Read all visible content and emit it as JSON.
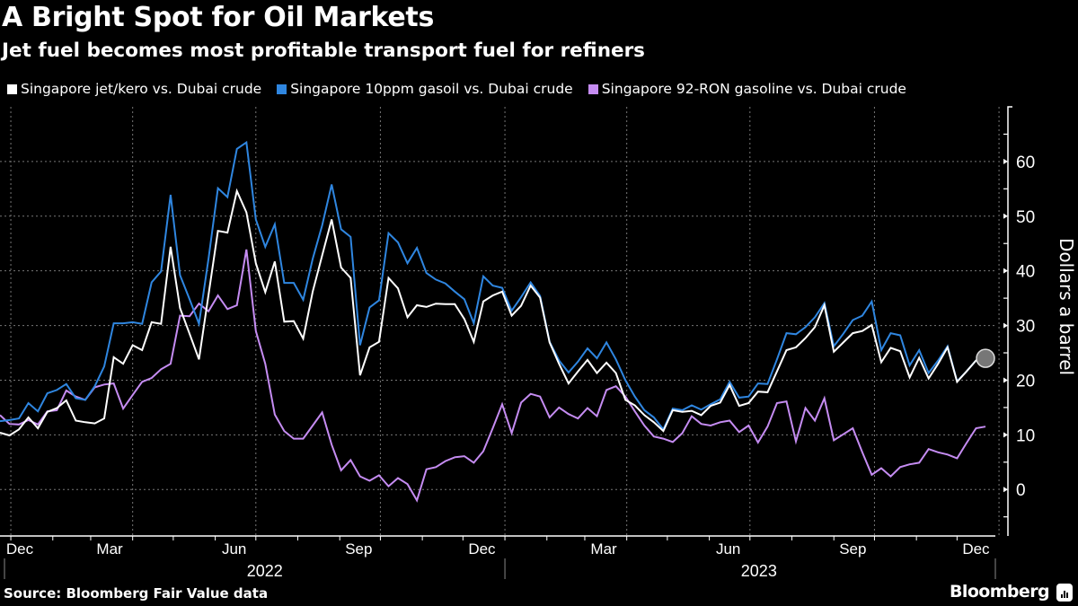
{
  "header": {
    "title": "A Bright Spot for Oil Markets",
    "subtitle": "Jet fuel becomes most profitable transport fuel for refiners"
  },
  "footer": {
    "source": "Source: Bloomberg Fair Value data",
    "brand": "Bloomberg"
  },
  "colors": {
    "background": "#000000",
    "jet": "#ffffff",
    "gasoil": "#2f86e0",
    "gasoline": "#c58cf2",
    "grid": "#777777",
    "end_marker": "#777777"
  },
  "chart_data": {
    "type": "line",
    "title": "A Bright Spot for Oil Markets",
    "subtitle": "Jet fuel becomes most profitable transport fuel for refiners",
    "ylabel": "Dollars a barrel",
    "xlabel": "",
    "ylim": [
      -8.5,
      70
    ],
    "yticks": [
      0,
      10,
      20,
      30,
      40,
      50,
      60
    ],
    "y_axis_position": "right",
    "grid": true,
    "legend_position": "top",
    "x_month_labels": [
      {
        "label": "Dec",
        "date": "2021-12-15"
      },
      {
        "label": "Mar",
        "date": "2022-03-15"
      },
      {
        "label": "Jun",
        "date": "2022-06-15"
      },
      {
        "label": "Sep",
        "date": "2022-09-15"
      },
      {
        "label": "Dec",
        "date": "2022-12-15"
      },
      {
        "label": "Mar",
        "date": "2023-03-15"
      },
      {
        "label": "Jun",
        "date": "2023-06-15"
      },
      {
        "label": "Sep",
        "date": "2023-09-15"
      },
      {
        "label": "Dec",
        "date": "2023-12-15"
      }
    ],
    "x_year_labels": [
      {
        "label": "2022",
        "date": "2022-07-01"
      },
      {
        "label": "2023",
        "date": "2023-07-01"
      }
    ],
    "x": [
      "2021-12-24",
      "2021-12-31",
      "2022-01-07",
      "2022-01-14",
      "2022-01-21",
      "2022-01-28",
      "2022-02-04",
      "2022-02-11",
      "2022-02-18",
      "2022-02-25",
      "2022-03-04",
      "2022-03-11",
      "2022-03-18",
      "2022-03-25",
      "2022-04-01",
      "2022-04-08",
      "2022-04-15",
      "2022-04-22",
      "2022-04-29",
      "2022-05-06",
      "2022-05-13",
      "2022-05-20",
      "2022-05-27",
      "2022-06-03",
      "2022-06-10",
      "2022-06-17",
      "2022-06-24",
      "2022-07-01",
      "2022-07-08",
      "2022-07-15",
      "2022-07-22",
      "2022-07-29",
      "2022-08-05",
      "2022-08-12",
      "2022-08-19",
      "2022-08-26",
      "2022-09-02",
      "2022-09-09",
      "2022-09-16",
      "2022-09-23",
      "2022-09-30",
      "2022-10-07",
      "2022-10-14",
      "2022-10-21",
      "2022-10-28",
      "2022-11-04",
      "2022-11-11",
      "2022-11-18",
      "2022-11-25",
      "2022-12-02",
      "2022-12-09",
      "2022-12-16",
      "2022-12-23",
      "2022-12-30",
      "2023-01-06",
      "2023-01-13",
      "2023-01-20",
      "2023-01-27",
      "2023-02-03",
      "2023-02-10",
      "2023-02-17",
      "2023-02-24",
      "2023-03-03",
      "2023-03-10",
      "2023-03-17",
      "2023-03-24",
      "2023-03-31",
      "2023-04-07",
      "2023-04-14",
      "2023-04-21",
      "2023-04-28",
      "2023-05-05",
      "2023-05-12",
      "2023-05-19",
      "2023-05-26",
      "2023-06-02",
      "2023-06-09",
      "2023-06-16",
      "2023-06-23",
      "2023-06-30",
      "2023-07-07",
      "2023-07-14",
      "2023-07-21",
      "2023-07-28",
      "2023-08-04",
      "2023-08-11",
      "2023-08-18",
      "2023-08-25",
      "2023-09-01",
      "2023-09-08",
      "2023-09-15",
      "2023-09-22",
      "2023-09-29",
      "2023-10-06",
      "2023-10-13",
      "2023-10-20",
      "2023-10-27",
      "2023-11-03",
      "2023-11-10",
      "2023-11-17",
      "2023-11-24",
      "2023-12-01",
      "2023-12-08",
      "2023-12-15",
      "2023-12-22"
    ],
    "series": [
      {
        "name": "Singapore jet/kero vs. Dubai crude",
        "color": "#ffffff",
        "end_marker": true,
        "values": [
          10.4,
          9.9,
          11.0,
          13.2,
          11.2,
          14.2,
          14.9,
          16.3,
          12.6,
          12.3,
          12.1,
          13.0,
          24.2,
          23.0,
          26.4,
          25.5,
          30.6,
          30.3,
          44.4,
          33.2,
          28.5,
          23.8,
          35.6,
          47.3,
          47.0,
          54.6,
          50.7,
          41.4,
          36.1,
          41.7,
          30.7,
          30.8,
          27.6,
          36.2,
          42.8,
          49.4,
          40.6,
          38.7,
          20.9,
          26.0,
          27.0,
          38.7,
          36.8,
          31.5,
          33.7,
          33.4,
          34.0,
          33.9,
          33.9,
          31.2,
          27.0,
          34.4,
          35.5,
          36.2,
          31.8,
          33.6,
          37.3,
          35.1,
          26.9,
          23.0,
          19.4,
          21.6,
          23.7,
          21.3,
          23.2,
          21.3,
          16.4,
          15.4,
          13.6,
          12.3,
          10.7,
          14.5,
          14.2,
          14.4,
          13.6,
          15.3,
          15.9,
          19.1,
          15.3,
          15.8,
          17.9,
          17.8,
          21.6,
          25.5,
          26.0,
          27.7,
          29.7,
          33.7,
          25.2,
          26.9,
          28.6,
          29.0,
          30.1,
          23.3,
          25.9,
          25.3,
          20.5,
          24.1,
          20.3,
          23.0,
          26.0,
          19.7,
          21.6,
          23.6,
          24.0
        ]
      },
      {
        "name": "Singapore 10ppm gasoil vs. Dubai crude",
        "color": "#2f86e0",
        "values": [
          12.5,
          12.7,
          13.0,
          15.8,
          14.3,
          17.6,
          18.2,
          19.3,
          16.7,
          16.4,
          18.9,
          22.5,
          30.4,
          30.4,
          30.6,
          30.3,
          37.9,
          39.9,
          53.9,
          39.2,
          34.8,
          30.3,
          42.2,
          55.1,
          53.5,
          62.3,
          63.5,
          49.4,
          44.4,
          48.5,
          37.8,
          37.8,
          34.7,
          42.2,
          48.3,
          55.8,
          47.6,
          46.2,
          26.4,
          33.3,
          34.6,
          46.9,
          45.2,
          41.4,
          44.2,
          39.6,
          38.4,
          37.7,
          36.2,
          34.8,
          30.4,
          39.0,
          37.3,
          36.9,
          32.7,
          35.2,
          37.9,
          35.4,
          27.0,
          23.6,
          21.4,
          23.4,
          25.8,
          24.0,
          26.9,
          23.8,
          20.0,
          17.0,
          14.5,
          13.2,
          11.0,
          14.8,
          14.5,
          15.4,
          14.6,
          15.6,
          16.5,
          19.7,
          16.8,
          17.0,
          19.4,
          19.3,
          23.8,
          28.6,
          28.4,
          29.7,
          31.5,
          34.1,
          26.2,
          28.5,
          31.0,
          31.8,
          34.4,
          25.5,
          28.6,
          28.2,
          22.7,
          25.5,
          21.3,
          23.6,
          26.2,
          19.8,
          21.6,
          23.6,
          23.3
        ]
      },
      {
        "name": "Singapore 92-RON gasoline vs. Dubai crude",
        "color": "#c58cf2",
        "values": [
          13.6,
          12.0,
          11.9,
          12.7,
          11.9,
          14.3,
          14.5,
          18.1,
          17.0,
          16.4,
          18.7,
          19.2,
          19.4,
          14.8,
          17.3,
          19.7,
          20.4,
          22.0,
          23.0,
          31.8,
          31.7,
          34.0,
          32.6,
          35.5,
          33.0,
          33.7,
          43.9,
          29.0,
          23.0,
          13.7,
          10.7,
          9.3,
          9.3,
          11.7,
          14.1,
          8.2,
          3.5,
          5.4,
          2.4,
          1.6,
          2.6,
          0.6,
          2.1,
          1.0,
          -2.0,
          3.7,
          4.1,
          5.2,
          5.9,
          6.1,
          4.9,
          7.0,
          11.2,
          15.6,
          10.3,
          15.9,
          17.5,
          17.0,
          13.2,
          15.0,
          13.8,
          13.0,
          14.9,
          13.4,
          18.2,
          18.9,
          17.0,
          14.3,
          11.7,
          9.7,
          9.3,
          8.7,
          10.3,
          13.4,
          12.0,
          11.7,
          12.3,
          12.6,
          10.5,
          11.7,
          8.6,
          11.5,
          15.8,
          16.1,
          8.8,
          14.9,
          12.6,
          16.7,
          9.0,
          10.1,
          11.2,
          6.8,
          2.7,
          3.9,
          2.4,
          4.1,
          4.6,
          4.9,
          7.4,
          6.8,
          6.4,
          5.7,
          8.5,
          11.2,
          11.5
        ]
      }
    ]
  }
}
